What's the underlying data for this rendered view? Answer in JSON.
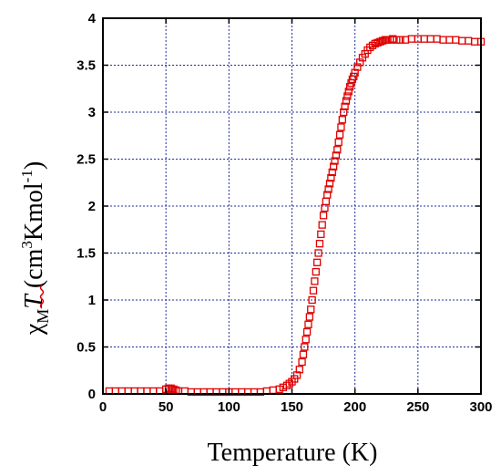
{
  "chart_data": {
    "type": "scatter",
    "title": "",
    "xlabel": "Temperature (K)",
    "ylabel": {
      "chi": "χ",
      "sub": "M",
      "T": "T",
      "units_pre": " (cm",
      "units_sup1": "3",
      "units_mid": "Kmol",
      "units_sup2": "-1",
      "units_post": ")"
    },
    "xlim": [
      0,
      300
    ],
    "ylim": [
      0,
      4
    ],
    "x_ticks": [
      0,
      50,
      100,
      150,
      200,
      250,
      300
    ],
    "x_tick_labels": [
      "0",
      "50",
      "100",
      "150",
      "200",
      "250",
      "300"
    ],
    "y_ticks": [
      0,
      0.5,
      1,
      1.5,
      2,
      2.5,
      3,
      3.5,
      4
    ],
    "y_tick_labels": [
      "0",
      "0.5",
      "1",
      "1.5",
      "2",
      "2.5",
      "3",
      "3.5",
      "4"
    ],
    "grid": true,
    "marker": "open-square",
    "colors": {
      "marker": "#e00000",
      "grid": "#1f2f9f",
      "frame": "#000000"
    },
    "series": [
      {
        "x": [
          5,
          10,
          15,
          20,
          25,
          30,
          35,
          40,
          45,
          50,
          52,
          54,
          56,
          58,
          60,
          65,
          70,
          75,
          80,
          85,
          90,
          95,
          100,
          105,
          110,
          115,
          120,
          125,
          130,
          135,
          140,
          143,
          146,
          148,
          150,
          152,
          154,
          156,
          158,
          159,
          160,
          161,
          162,
          163,
          164,
          165,
          166,
          167,
          168,
          169,
          170,
          171,
          172,
          173,
          174,
          175,
          176,
          177,
          178,
          179,
          180,
          181,
          182,
          183,
          184,
          185,
          186,
          187,
          188,
          189,
          190,
          191,
          192,
          193,
          194,
          195,
          196,
          197,
          198,
          199,
          200,
          202,
          204,
          206,
          208,
          210,
          212,
          214,
          216,
          218,
          220,
          222,
          224,
          226,
          228,
          230,
          233,
          236,
          240,
          245,
          250,
          255,
          260,
          265,
          270,
          275,
          280,
          285,
          290,
          295,
          300
        ],
        "y": [
          0.03,
          0.03,
          0.03,
          0.03,
          0.03,
          0.03,
          0.03,
          0.03,
          0.03,
          0.05,
          0.06,
          0.06,
          0.05,
          0.04,
          0.03,
          0.03,
          0.02,
          0.02,
          0.02,
          0.02,
          0.02,
          0.02,
          0.02,
          0.02,
          0.02,
          0.02,
          0.02,
          0.02,
          0.03,
          0.04,
          0.05,
          0.07,
          0.09,
          0.11,
          0.13,
          0.16,
          0.2,
          0.26,
          0.34,
          0.42,
          0.5,
          0.58,
          0.66,
          0.74,
          0.82,
          0.9,
          1.0,
          1.1,
          1.2,
          1.3,
          1.4,
          1.5,
          1.6,
          1.7,
          1.8,
          1.9,
          1.98,
          2.05,
          2.12,
          2.18,
          2.24,
          2.3,
          2.36,
          2.42,
          2.48,
          2.54,
          2.6,
          2.68,
          2.76,
          2.84,
          2.92,
          3.0,
          3.06,
          3.12,
          3.17,
          3.22,
          3.27,
          3.31,
          3.35,
          3.38,
          3.42,
          3.48,
          3.53,
          3.58,
          3.62,
          3.66,
          3.69,
          3.71,
          3.73,
          3.74,
          3.75,
          3.76,
          3.77,
          3.77,
          3.77,
          3.78,
          3.77,
          3.77,
          3.77,
          3.78,
          3.78,
          3.78,
          3.78,
          3.78,
          3.77,
          3.77,
          3.77,
          3.76,
          3.76,
          3.75,
          3.75
        ]
      }
    ]
  }
}
